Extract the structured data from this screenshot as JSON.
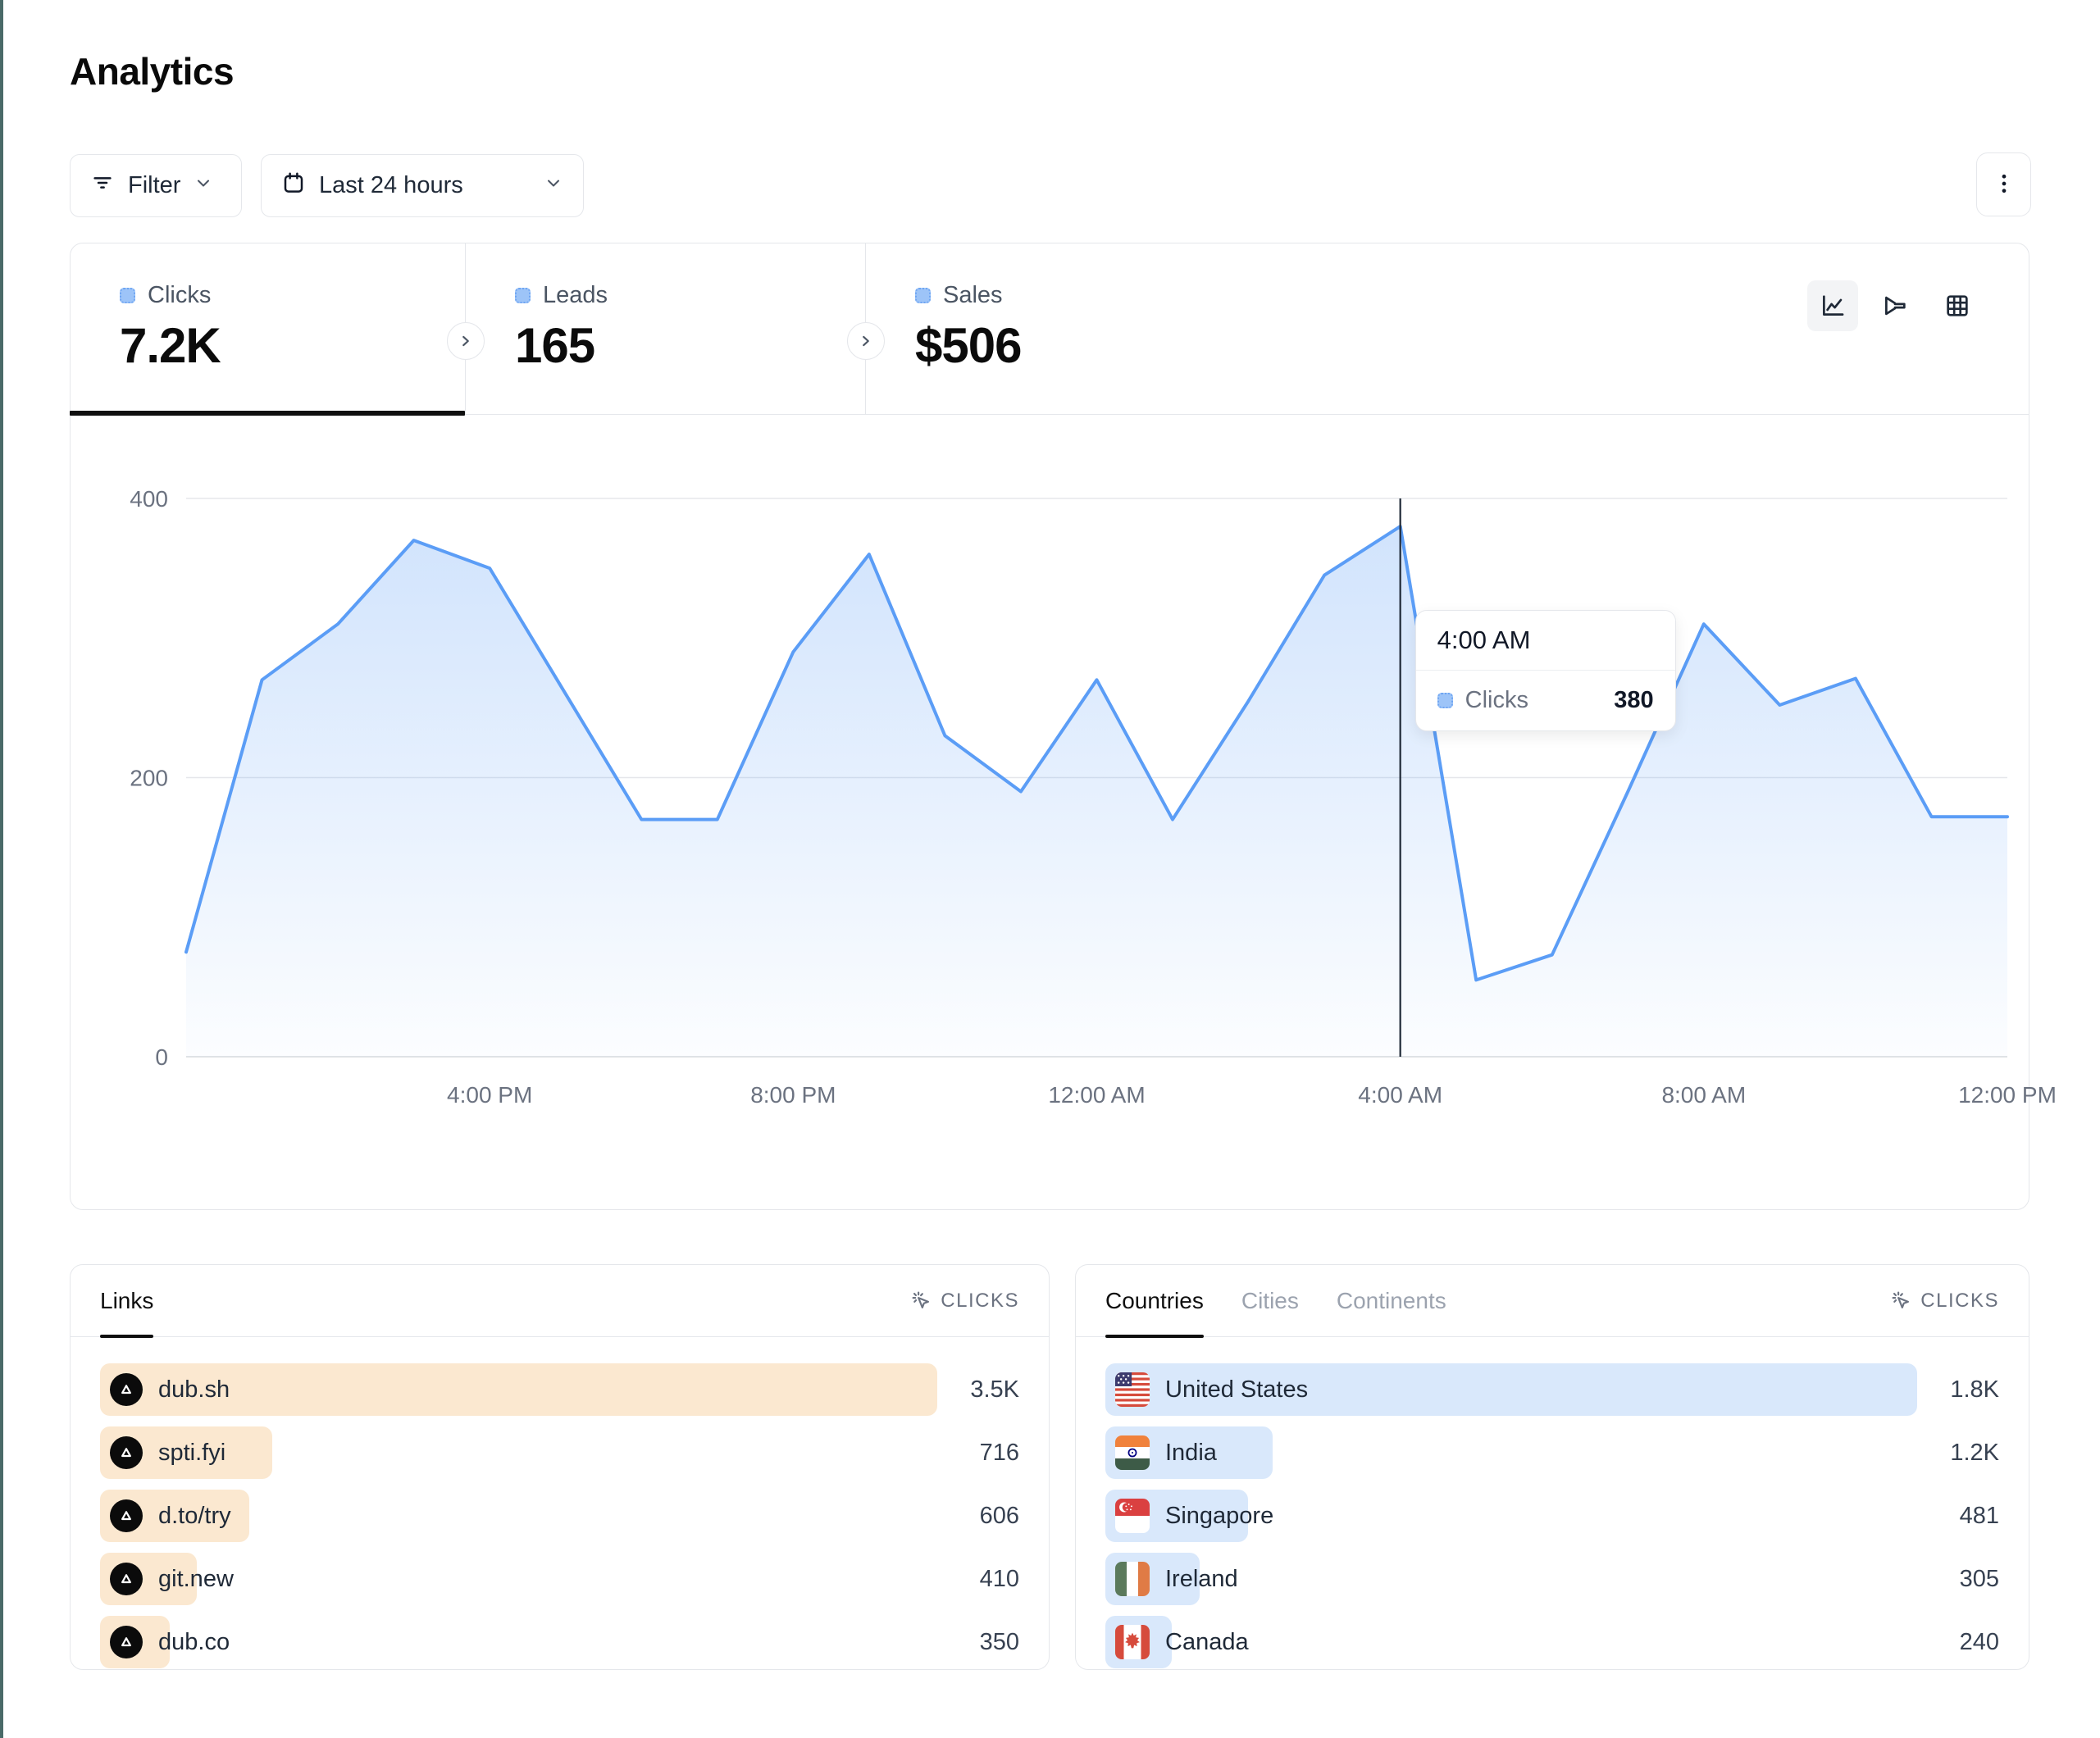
{
  "page": {
    "title": "Analytics"
  },
  "toolbar": {
    "filter_label": "Filter",
    "date_range": "Last 24 hours"
  },
  "stats": {
    "cards": [
      {
        "label": "Clicks",
        "value": "7.2K"
      },
      {
        "label": "Leads",
        "value": "165"
      },
      {
        "label": "Sales",
        "value": "$506"
      }
    ]
  },
  "chart_data": {
    "type": "area",
    "series_name": "Clicks",
    "x": [
      "12 PM",
      "1 PM",
      "2 PM",
      "3 PM",
      "4 PM",
      "5 PM",
      "6 PM",
      "7 PM",
      "8 PM",
      "9 PM",
      "10 PM",
      "11 PM",
      "12 AM",
      "1 AM",
      "2 AM",
      "3 AM",
      "4 AM",
      "5 AM",
      "6 AM",
      "7 AM",
      "8 AM",
      "9 AM",
      "10 AM",
      "11 AM",
      "12 PM"
    ],
    "values": [
      75,
      270,
      310,
      370,
      350,
      260,
      170,
      170,
      290,
      360,
      230,
      190,
      270,
      170,
      255,
      345,
      380,
      55,
      73,
      190,
      310,
      252,
      271,
      172,
      172
    ],
    "ylim": [
      0,
      400
    ],
    "yticks": [
      0,
      200,
      400
    ],
    "xticks": [
      {
        "i": 4,
        "label": "4:00 PM"
      },
      {
        "i": 8,
        "label": "8:00 PM"
      },
      {
        "i": 12,
        "label": "12:00 AM"
      },
      {
        "i": 16,
        "label": "4:00 AM"
      },
      {
        "i": 20,
        "label": "8:00 AM"
      },
      {
        "i": 24,
        "label": "12:00 PM"
      }
    ],
    "grid": "horizontal",
    "line_color": "#5b9df6",
    "legend_position": "none",
    "tooltip": {
      "time": "4:00 AM",
      "series": "Clicks",
      "value": "380",
      "index": 16
    }
  },
  "links_panel": {
    "tab": "Links",
    "metric_header": "CLICKS",
    "bar_color": "#fbe8d0",
    "rows": [
      {
        "label": "dub.sh",
        "value": "3.5K",
        "bar_pct": 100
      },
      {
        "label": "spti.fyi",
        "value": "716",
        "bar_pct": 20.6
      },
      {
        "label": "d.to/try",
        "value": "606",
        "bar_pct": 17.8
      },
      {
        "label": "git.new",
        "value": "410",
        "bar_pct": 11.6
      },
      {
        "label": "dub.co",
        "value": "350",
        "bar_pct": 8.3
      }
    ]
  },
  "geo_panel": {
    "tabs": [
      "Countries",
      "Cities",
      "Continents"
    ],
    "active_tab": "Countries",
    "metric_header": "CLICKS",
    "bar_color": "#d9e8fb",
    "rows": [
      {
        "label": "United States",
        "value": "1.8K",
        "bar_pct": 100,
        "flag": "us"
      },
      {
        "label": "India",
        "value": "1.2K",
        "bar_pct": 20.6,
        "flag": "in"
      },
      {
        "label": "Singapore",
        "value": "481",
        "bar_pct": 17.6,
        "flag": "sg"
      },
      {
        "label": "Ireland",
        "value": "305",
        "bar_pct": 11.6,
        "flag": "ie"
      },
      {
        "label": "Canada",
        "value": "240",
        "bar_pct": 8.2,
        "flag": "ca"
      }
    ]
  },
  "colors": {
    "accent_blue": "#5b9df6",
    "links_bar": "#fbe8d0",
    "geo_bar": "#d9e8fb",
    "left_edge_strip": "#4a6a68",
    "card_border": "#e5e7eb",
    "crosshair": "#1f2937"
  }
}
